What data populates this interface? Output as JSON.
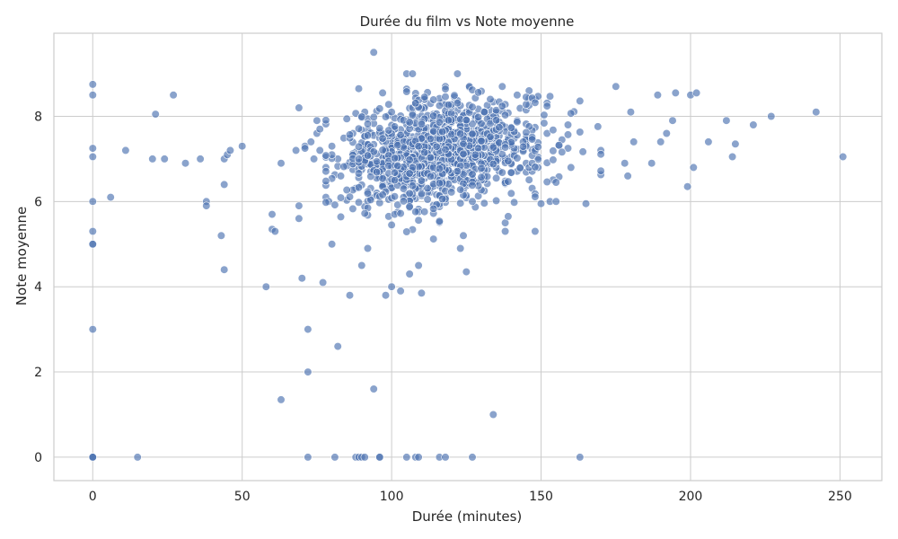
{
  "chart_data": {
    "type": "scatter",
    "title": "Durée du film vs Note moyenne",
    "xlabel": "Durée (minutes)",
    "ylabel": "Note moyenne",
    "xlim": [
      -13,
      264
    ],
    "ylim": [
      -0.55,
      9.95
    ],
    "xticks": [
      0,
      50,
      100,
      150,
      200,
      250
    ],
    "yticks": [
      0,
      2,
      4,
      6,
      8
    ],
    "grid": true,
    "marker_color": "#4c72b0",
    "marker_edge": "#ffffff",
    "marker_alpha": 0.65,
    "points": [
      [
        0,
        8.75
      ],
      [
        0,
        8.5
      ],
      [
        0,
        7.25
      ],
      [
        0,
        7.05
      ],
      [
        0,
        6.0
      ],
      [
        0,
        5.3
      ],
      [
        0,
        5.0
      ],
      [
        0,
        5.0
      ],
      [
        0,
        3.0
      ],
      [
        0,
        0
      ],
      [
        0,
        0
      ],
      [
        0,
        0
      ],
      [
        6,
        6.1
      ],
      [
        11,
        7.2
      ],
      [
        15,
        0
      ],
      [
        20,
        7.0
      ],
      [
        21,
        8.05
      ],
      [
        24,
        7.0
      ],
      [
        27,
        8.5
      ],
      [
        31,
        6.9
      ],
      [
        36,
        7.0
      ],
      [
        38,
        6.0
      ],
      [
        38,
        5.9
      ],
      [
        43,
        5.2
      ],
      [
        44,
        6.4
      ],
      [
        44,
        4.4
      ],
      [
        44,
        7.0
      ],
      [
        45,
        7.1
      ],
      [
        46,
        7.2
      ],
      [
        50,
        7.3
      ],
      [
        58,
        4.0
      ],
      [
        60,
        5.7
      ],
      [
        60,
        5.35
      ],
      [
        61,
        5.3
      ],
      [
        63,
        6.9
      ],
      [
        63,
        1.35
      ],
      [
        68,
        7.2
      ],
      [
        69,
        8.2
      ],
      [
        69,
        5.9
      ],
      [
        69,
        5.6
      ],
      [
        70,
        4.2
      ],
      [
        71,
        7.3
      ],
      [
        71,
        7.25
      ],
      [
        72,
        3.0
      ],
      [
        72,
        2.0
      ],
      [
        72,
        0
      ],
      [
        73,
        7.4
      ],
      [
        74,
        7.0
      ],
      [
        75,
        7.9
      ],
      [
        75,
        7.6
      ],
      [
        76,
        7.7
      ],
      [
        76,
        7.2
      ],
      [
        77,
        4.1
      ],
      [
        78,
        6.1
      ],
      [
        79,
        6.0
      ],
      [
        80,
        7.3
      ],
      [
        80,
        5.0
      ],
      [
        81,
        0
      ],
      [
        82,
        2.6
      ],
      [
        86,
        3.8
      ],
      [
        88,
        0
      ],
      [
        89,
        0
      ],
      [
        89,
        8.65
      ],
      [
        90,
        4.5
      ],
      [
        90,
        0
      ],
      [
        91,
        0
      ],
      [
        92,
        4.9
      ],
      [
        94,
        9.5
      ],
      [
        94,
        1.6
      ],
      [
        96,
        0
      ],
      [
        96,
        0
      ],
      [
        97,
        8.55
      ],
      [
        98,
        3.8
      ],
      [
        100,
        4.0
      ],
      [
        103,
        3.9
      ],
      [
        105,
        0
      ],
      [
        105,
        9.0
      ],
      [
        106,
        4.3
      ],
      [
        107,
        9.0
      ],
      [
        108,
        0
      ],
      [
        109,
        0
      ],
      [
        109,
        4.5
      ],
      [
        110,
        3.85
      ],
      [
        116,
        0
      ],
      [
        118,
        0
      ],
      [
        122,
        9.0
      ],
      [
        123,
        4.9
      ],
      [
        124,
        5.2
      ],
      [
        125,
        4.35
      ],
      [
        127,
        0
      ],
      [
        134,
        1.0
      ],
      [
        138,
        5.5
      ],
      [
        138,
        5.3
      ],
      [
        139,
        5.65
      ],
      [
        146,
        8.6
      ],
      [
        148,
        5.3
      ],
      [
        150,
        5.95
      ],
      [
        153,
        6.0
      ],
      [
        155,
        6.0
      ],
      [
        160,
        6.8
      ],
      [
        163,
        0
      ],
      [
        165,
        5.95
      ],
      [
        170,
        7.2
      ],
      [
        175,
        8.7
      ],
      [
        178,
        6.9
      ],
      [
        179,
        6.6
      ],
      [
        180,
        8.1
      ],
      [
        181,
        7.4
      ],
      [
        187,
        6.9
      ],
      [
        189,
        8.5
      ],
      [
        190,
        7.4
      ],
      [
        192,
        7.6
      ],
      [
        194,
        7.9
      ],
      [
        195,
        8.55
      ],
      [
        199,
        6.35
      ],
      [
        200,
        8.5
      ],
      [
        201,
        6.8
      ],
      [
        202,
        8.55
      ],
      [
        206,
        7.4
      ],
      [
        212,
        7.9
      ],
      [
        214,
        7.05
      ],
      [
        215,
        7.35
      ],
      [
        221,
        7.8
      ],
      [
        227,
        8.0
      ],
      [
        242,
        8.1
      ],
      [
        251,
        7.05
      ]
    ],
    "cluster": {
      "seed": 7,
      "count": 1150,
      "x_mean": 117,
      "x_sd": 17,
      "y_mean": 7.15,
      "y_sd": 0.62
    }
  }
}
